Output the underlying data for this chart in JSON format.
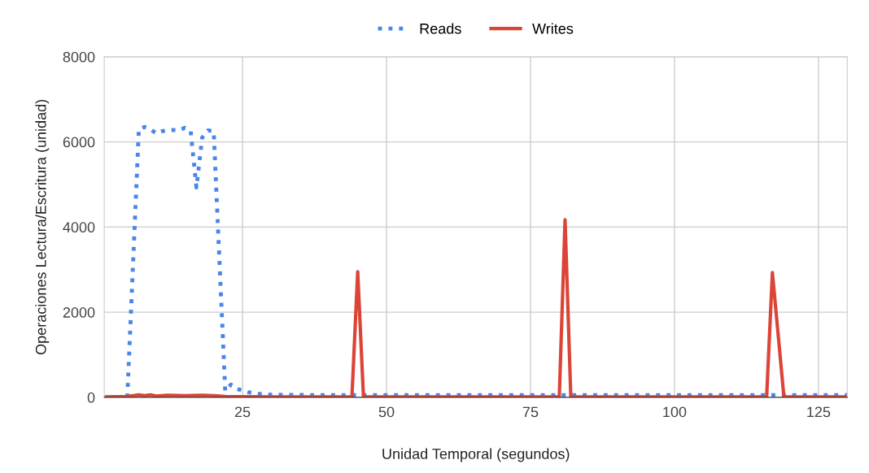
{
  "chart_data": {
    "type": "line",
    "xlabel": "Unidad Temporal (segundos)",
    "ylabel": "Operaciones Lectura/Escritura (unidad)",
    "xlim": [
      1,
      130
    ],
    "xticks": [
      25,
      50,
      75,
      100,
      125
    ],
    "ylim": [
      0,
      8000
    ],
    "yticks": [
      0,
      2000,
      4000,
      6000,
      8000
    ],
    "grid": true,
    "legend": "top",
    "marker": "none",
    "series": [
      {
        "name": "Reads",
        "color": "#4a86e8",
        "line_style": "dotted",
        "x": [
          5,
          7,
          8,
          9,
          10,
          11,
          12,
          13,
          14,
          15,
          16,
          17,
          18,
          19,
          20,
          22,
          23,
          24,
          26,
          28,
          30,
          40,
          60,
          80,
          100,
          120,
          130
        ],
        "values": [
          0,
          6300,
          6350,
          6300,
          6200,
          6250,
          6270,
          6280,
          6270,
          6330,
          6250,
          4930,
          6100,
          6270,
          6250,
          150,
          300,
          200,
          120,
          80,
          60,
          50,
          50,
          50,
          50,
          50,
          50
        ]
      },
      {
        "name": "Writes",
        "color": "#db4437",
        "line_style": "solid",
        "x": [
          1,
          5,
          7,
          8,
          9,
          10,
          12,
          15,
          18,
          20,
          22,
          30,
          44,
          45,
          46,
          80,
          81,
          82,
          116,
          117,
          119,
          130
        ],
        "values": [
          10,
          20,
          60,
          40,
          60,
          30,
          50,
          40,
          50,
          40,
          20,
          10,
          10,
          2950,
          10,
          10,
          4170,
          10,
          10,
          2930,
          10,
          10
        ]
      }
    ]
  }
}
